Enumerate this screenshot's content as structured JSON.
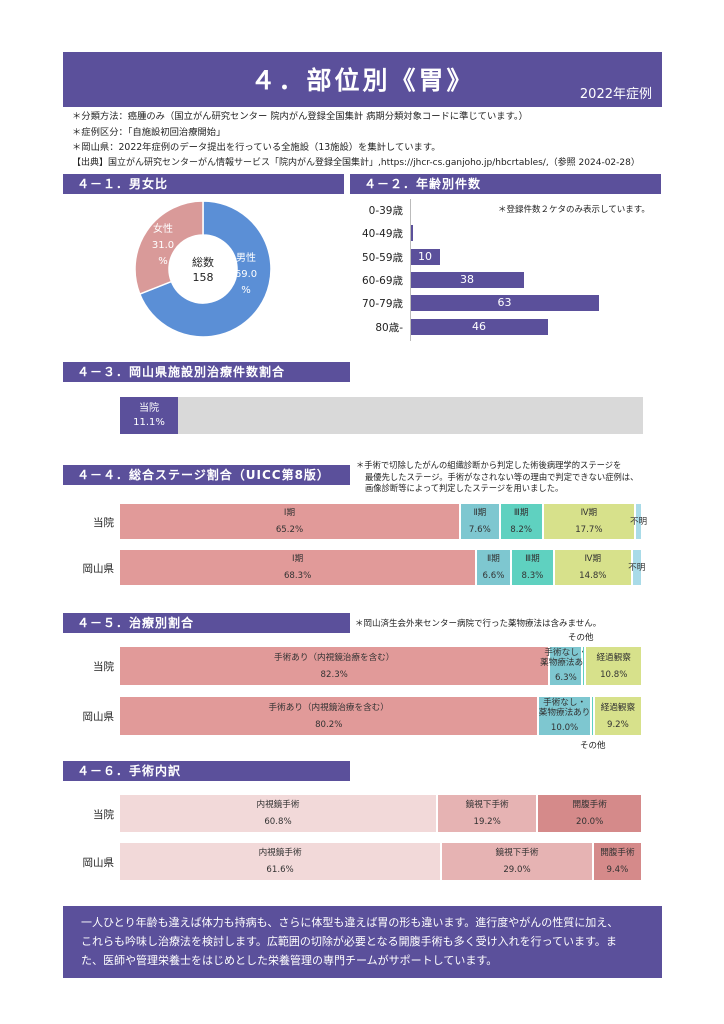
{
  "header": {
    "title": "４．部位別《胃》",
    "year": "2022年症例"
  },
  "notes": [
    "＊分類方法：癌腫のみ（国立がん研究センター 院内がん登録全国集計 病期分類対象コードに準じています。）",
    "＊症例区分：「自施設初回治療開始」",
    "＊岡山県：2022年症例のデータ提出を行っている全施設（13施設）を集計しています。",
    "【出典】国立がん研究センターがん情報サービス「院内がん登録全国集計」,https://jhcr-cs.ganjoho.jp/hbcrtables/,（参照 2024-02-28）"
  ],
  "colors": {
    "accent": "#5b509b",
    "male": "#5b8fd6",
    "female": "#d99a99"
  },
  "sections": {
    "s1": "４－１．男女比",
    "s2": "４－２．年齢別件数",
    "s3": "４－３．岡山県施設別治療件数割合",
    "s4": "４－４．総合ステージ割合（UICC第8版）",
    "s5": "４－５．治療別割合",
    "s6": "４－６．手術内訳"
  },
  "sex": {
    "total_label": "総数",
    "total": "158",
    "male": {
      "label": "男性",
      "pct": "69.0",
      "unit": "%"
    },
    "female": {
      "label": "女性",
      "pct": "31.0",
      "unit": "%"
    }
  },
  "age": {
    "note": "＊登録件数２ケタのみ表示しています。",
    "rows": [
      {
        "label": "0-39歳",
        "value": 0,
        "text": ""
      },
      {
        "label": "40-49歳",
        "value": 1,
        "text": ""
      },
      {
        "label": "50-59歳",
        "value": 10,
        "text": "10"
      },
      {
        "label": "60-69歳",
        "value": 38,
        "text": "38"
      },
      {
        "label": "70-79歳",
        "value": 63,
        "text": "63"
      },
      {
        "label": "80歳-",
        "value": 46,
        "text": "46"
      }
    ]
  },
  "facility": {
    "label": "当院",
    "pct": "11.1%",
    "value": 11.1
  },
  "stage": {
    "note1": "＊手術で切除したがんの組織診断から判定した術後病理学的ステージを",
    "note2": "最優先したステージ。手術がなされない等の理由で判定できない症例は、",
    "note3": "画像診断等によって判定したステージを用いました。",
    "rows": [
      {
        "label": "当院",
        "segs": [
          {
            "name": "Ⅰ期",
            "pct": "65.2%",
            "value": 65.2,
            "color": "#e19a99"
          },
          {
            "name": "Ⅱ期",
            "pct": "7.6%",
            "value": 7.6,
            "color": "#7ec7d0"
          },
          {
            "name": "Ⅲ期",
            "pct": "8.2%",
            "value": 8.2,
            "color": "#5fd1c0"
          },
          {
            "name": "Ⅳ期",
            "pct": "17.7%",
            "value": 17.7,
            "color": "#d7e18b"
          },
          {
            "name": "不明",
            "pct": "",
            "value": 1.3,
            "color": "#a9dbe8"
          }
        ]
      },
      {
        "label": "岡山県",
        "segs": [
          {
            "name": "Ⅰ期",
            "pct": "68.3%",
            "value": 68.3,
            "color": "#e19a99"
          },
          {
            "name": "Ⅱ期",
            "pct": "6.6%",
            "value": 6.6,
            "color": "#7ec7d0"
          },
          {
            "name": "Ⅲ期",
            "pct": "8.3%",
            "value": 8.3,
            "color": "#5fd1c0"
          },
          {
            "name": "Ⅳ期",
            "pct": "14.8%",
            "value": 14.8,
            "color": "#d7e18b"
          },
          {
            "name": "不明",
            "pct": "",
            "value": 2.0,
            "color": "#a9dbe8"
          }
        ]
      }
    ]
  },
  "treatment": {
    "note": "＊岡山済生会外来センター病院で行った薬物療法は含みません。",
    "other_label": "その他",
    "rows": [
      {
        "label": "当院",
        "segs": [
          {
            "name": "手術あり（内視鏡治療を含む）",
            "pct": "82.3%",
            "value": 82.3,
            "color": "#e19a99"
          },
          {
            "name": "手術なし・\n薬物療法あり",
            "pct": "6.3%",
            "value": 6.3,
            "color": "#7ec7d0"
          },
          {
            "name": "",
            "pct": "",
            "value": 0.6,
            "color": "#5fd1c0"
          },
          {
            "name": "経過観察",
            "pct": "10.8%",
            "value": 10.8,
            "color": "#d7e18b"
          }
        ]
      },
      {
        "label": "岡山県",
        "segs": [
          {
            "name": "手術あり（内視鏡治療を含む）",
            "pct": "80.2%",
            "value": 80.2,
            "color": "#e19a99"
          },
          {
            "name": "手術なし・\n薬物療法あり",
            "pct": "10.0%",
            "value": 10.0,
            "color": "#7ec7d0"
          },
          {
            "name": "",
            "pct": "",
            "value": 0.6,
            "color": "#5fd1c0"
          },
          {
            "name": "経過観察",
            "pct": "9.2%",
            "value": 9.2,
            "color": "#d7e18b"
          }
        ]
      }
    ]
  },
  "surgery": {
    "rows": [
      {
        "label": "当院",
        "segs": [
          {
            "name": "内視鏡手術",
            "pct": "60.8%",
            "value": 60.8,
            "color": "#f2d9d9"
          },
          {
            "name": "鏡視下手術",
            "pct": "19.2%",
            "value": 19.2,
            "color": "#e6b3b3"
          },
          {
            "name": "開腹手術",
            "pct": "20.0%",
            "value": 20.0,
            "color": "#d58a8a"
          }
        ]
      },
      {
        "label": "岡山県",
        "segs": [
          {
            "name": "内視鏡手術",
            "pct": "61.6%",
            "value": 61.6,
            "color": "#f2d9d9"
          },
          {
            "name": "鏡視下手術",
            "pct": "29.0%",
            "value": 29.0,
            "color": "#e6b3b3"
          },
          {
            "name": "開腹手術",
            "pct": "9.4%",
            "value": 9.4,
            "color": "#d58a8a"
          }
        ]
      }
    ]
  },
  "footer": [
    "一人ひとり年齢も違えば体力も持病も、さらに体型も違えば胃の形も違います。進行度やがんの性質に加え、",
    "これらも吟味し治療法を検討します。広範囲の切除が必要となる開腹手術も多く受け入れを行っています。ま",
    "た、医師や管理栄養士をはじめとした栄養管理の専門チームがサポートしています。"
  ]
}
